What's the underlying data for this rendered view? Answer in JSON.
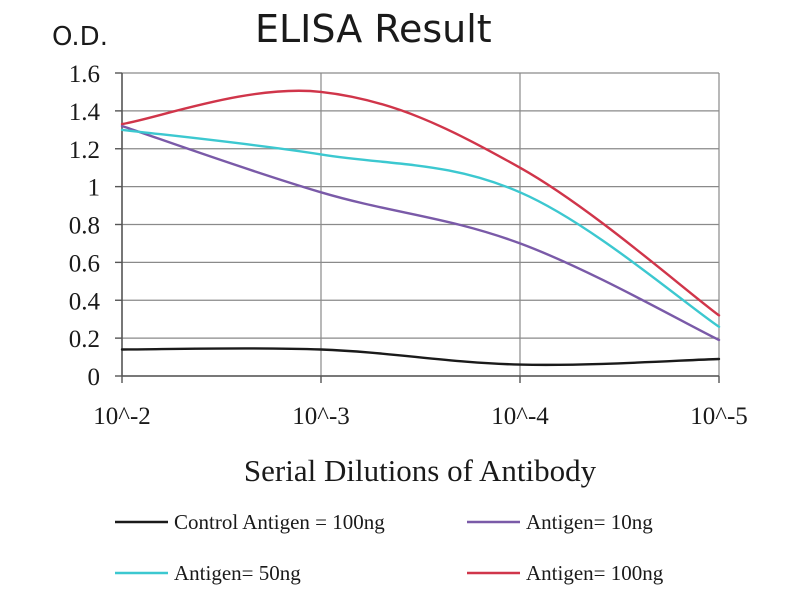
{
  "chart_data": {
    "type": "line",
    "title": "ELISA Result",
    "ylabel": "O.D.",
    "xlabel": "Serial Dilutions of Antibody",
    "categories": [
      "10^-2",
      "10^-3",
      "10^-4",
      "10^-5"
    ],
    "ylim": [
      0,
      1.6
    ],
    "yticks": [
      "0",
      "0.2",
      "0.4",
      "0.6",
      "0.8",
      "1",
      "1.2",
      "1.4",
      "1.6"
    ],
    "grid": true,
    "legend_position": "bottom",
    "series": [
      {
        "name": "Control Antigen = 100ng",
        "color": "#1a1a1a",
        "values": [
          0.14,
          0.14,
          0.06,
          0.09
        ]
      },
      {
        "name": "Antigen= 10ng",
        "color": "#7a5aa8",
        "values": [
          1.32,
          0.97,
          0.7,
          0.19
        ]
      },
      {
        "name": "Antigen= 50ng",
        "color": "#3cc8d0",
        "values": [
          1.3,
          1.17,
          0.97,
          0.26
        ]
      },
      {
        "name": "Antigen= 100ng",
        "color": "#d0354a",
        "values": [
          1.33,
          1.5,
          1.1,
          0.32
        ]
      }
    ]
  }
}
